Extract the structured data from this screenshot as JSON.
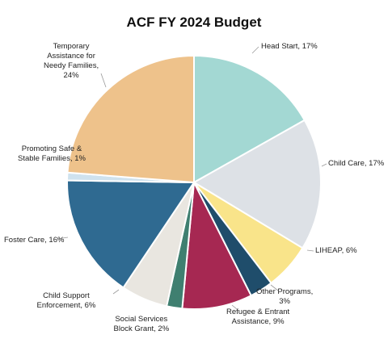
{
  "chart_data": {
    "type": "pie",
    "title": "ACF FY 2024 Budget",
    "legend": "none",
    "slices": [
      {
        "name": "Head Start",
        "value": 17,
        "label_lines": [
          "Head Start, 17%"
        ],
        "color": "#a3d8d3"
      },
      {
        "name": "Child Care",
        "value": 17,
        "label_lines": [
          "Child Care, 17%"
        ],
        "color": "#dde1e6"
      },
      {
        "name": "LIHEAP",
        "value": 6,
        "label_lines": [
          "LIHEAP, 6%"
        ],
        "color": "#f9e48a"
      },
      {
        "name": "Other Programs",
        "value": 3,
        "label_lines": [
          "Other Programs,",
          "3%"
        ],
        "color": "#1f4d6b"
      },
      {
        "name": "Refugee & Entrant Assistance",
        "value": 9,
        "label_lines": [
          "Refugee & Entrant",
          "Assistance, 9%"
        ],
        "color": "#a62852"
      },
      {
        "name": "Social Services Block Grant",
        "value": 2,
        "label_lines": [
          "Social Services",
          "Block Grant, 2%"
        ],
        "color": "#3f7f70"
      },
      {
        "name": "Child Support Enforcement",
        "value": 6,
        "label_lines": [
          "Child Support",
          "Enforcement, 6%"
        ],
        "color": "#e9e6e0"
      },
      {
        "name": "Foster Care",
        "value": 16,
        "label_lines": [
          "Foster Care, 16%"
        ],
        "color": "#2f6a91"
      },
      {
        "name": "Promoting Safe & Stable Families",
        "value": 1,
        "label_lines": [
          "Promoting Safe &",
          "Stable Families, 1%"
        ],
        "color": "#cfe2ee"
      },
      {
        "name": "Temporary Assistance for Needy Families",
        "value": 24,
        "label_lines": [
          "Temporary",
          "Assistance for",
          "Needy Families,",
          "24%"
        ],
        "color": "#eec28b"
      }
    ]
  }
}
